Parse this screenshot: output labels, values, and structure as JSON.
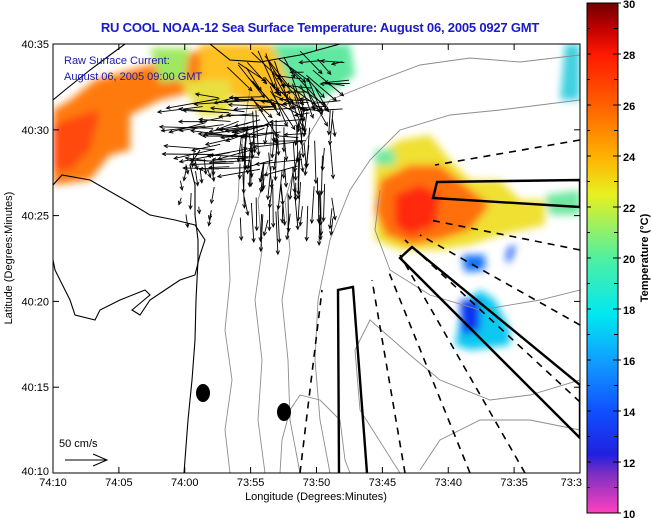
{
  "chart_data": {
    "type": "heatmap",
    "title": "RU COOL  NOAA-12  Sea Surface Temperature:  August 06, 2005 0927 GMT",
    "xlabel": "Longitude (Degrees:Minutes)",
    "ylabel": "Latitude (Degrees:Minutes)",
    "x_ticks": [
      "74:10",
      "74:05",
      "74:00",
      "73:55",
      "73:50",
      "73:45",
      "73:40",
      "73:35",
      "73:3"
    ],
    "y_ticks": [
      "40:35",
      "40:30",
      "40:25",
      "40:20",
      "40:15",
      "40:10"
    ],
    "xlim_minutes_west": [
      250,
      210
    ],
    "ylim_minutes_north": [
      2410,
      2435
    ],
    "colorbar": {
      "label": "Temperature (°C)",
      "min": 10,
      "max": 30,
      "ticks": [
        "10",
        "12",
        "14",
        "16",
        "18",
        "20",
        "22",
        "24",
        "26",
        "28",
        "30"
      ],
      "stops": [
        {
          "value": 10,
          "color": "#ff40c0"
        },
        {
          "value": 11.5,
          "color": "#8030c0"
        },
        {
          "value": 12.3,
          "color": "#2020e0"
        },
        {
          "value": 14,
          "color": "#1050ff"
        },
        {
          "value": 16,
          "color": "#10a0ff"
        },
        {
          "value": 17.8,
          "color": "#00e8f0"
        },
        {
          "value": 20,
          "color": "#50f0a0"
        },
        {
          "value": 22.5,
          "color": "#e8f020"
        },
        {
          "value": 24,
          "color": "#ffb000"
        },
        {
          "value": 26,
          "color": "#ff6000"
        },
        {
          "value": 28,
          "color": "#ff1800"
        },
        {
          "value": 29,
          "color": "#c00000"
        },
        {
          "value": 30,
          "color": "#700000"
        }
      ]
    },
    "sst_patches": [
      {
        "region": "northwest-shore",
        "temp_c": 26
      },
      {
        "region": "north-central",
        "temp_c": 24
      },
      {
        "region": "north-greenish",
        "temp_c": 20
      },
      {
        "region": "east-warm-core",
        "temp_c": 27
      },
      {
        "region": "east-fringe",
        "temp_c": 22
      },
      {
        "region": "southeast-cold",
        "temp_c": 15
      }
    ],
    "annotations": {
      "current_title": "Raw Surface Current:",
      "current_time": "August 06, 2005 09:00 GMT",
      "scale_label": "50 cm/s"
    },
    "legend": "right"
  }
}
